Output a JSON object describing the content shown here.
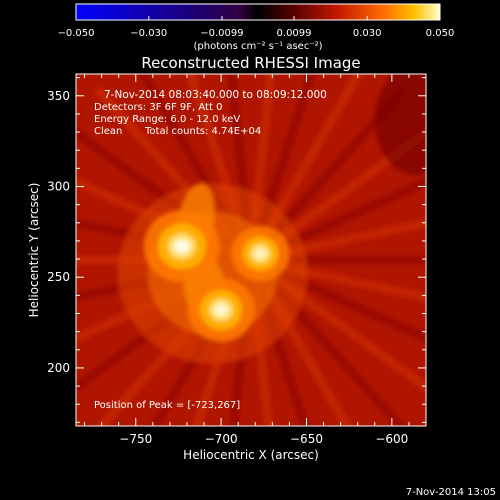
{
  "colorbar": {
    "tick_labels": [
      "-0.050",
      "-0.030",
      "-0.0099",
      "0.0099",
      "0.030",
      "0.050"
    ],
    "tick_values": [
      -0.05,
      -0.03,
      -0.0099,
      0.0099,
      0.03,
      0.05
    ],
    "range": [
      -0.05,
      0.05
    ],
    "unit_label": "(photons cm⁻² s⁻¹ asec⁻²)"
  },
  "chart_data": {
    "type": "heatmap",
    "title": "Reconstructed RHESSI Image",
    "xlabel": "Heliocentric X (arcsec)",
    "ylabel": "Heliocentric Y (arcsec)",
    "xlim": [
      -785,
      -580
    ],
    "ylim": [
      168,
      362
    ],
    "x_ticks": [
      -750,
      -700,
      -650,
      -600
    ],
    "y_ticks": [
      200,
      250,
      300,
      350
    ],
    "x_tick_labels": [
      "−750",
      "−700",
      "−650",
      "−600"
    ],
    "y_tick_labels": [
      "200",
      "250",
      "300",
      "350"
    ],
    "sources": [
      {
        "x": -723,
        "y": 267,
        "relative_intensity": 1.0
      },
      {
        "x": -700,
        "y": 232,
        "relative_intensity": 0.85
      },
      {
        "x": -677,
        "y": 263,
        "relative_intensity": 0.7
      }
    ],
    "peak": {
      "x": -723,
      "y": 267
    },
    "annotations": {
      "time_range": "7-Nov-2014 08:03:40.000 to 08:09:12.000",
      "detectors": "Detectors: 3F 6F 9F, Att 0",
      "energy": "Energy Range: 6.0 - 12.0 keV",
      "clean": "Clean",
      "total_counts": "Total counts: 4.74E+04",
      "peak_position": "Position of Peak = [-723,267]"
    },
    "grid": false
  },
  "footer": {
    "timestamp": "7-Nov-2014 13:05"
  }
}
